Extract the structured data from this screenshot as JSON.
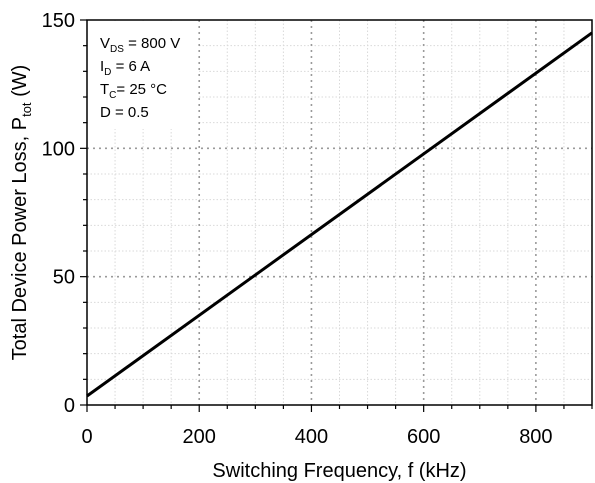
{
  "chart_data": {
    "type": "line",
    "xlabel": "Switching Frequency, f (kHz)",
    "ylabel": {
      "main": "Total Device Power Loss, P",
      "sub": "tot",
      "unit": " (W)"
    },
    "xlim": [
      0,
      900
    ],
    "ylim": [
      0,
      150
    ],
    "x_ticks": [
      0,
      200,
      400,
      600,
      800
    ],
    "y_ticks": [
      0,
      50,
      100,
      150
    ],
    "x_tick_labels": [
      "0",
      "200",
      "400",
      "600",
      "800"
    ],
    "y_tick_labels": [
      "0",
      "50",
      "100",
      "150"
    ],
    "major_grid": true,
    "minor_grid": true,
    "minor_x_step": 50,
    "minor_y_step": 10,
    "series": [
      {
        "x": [
          0,
          900
        ],
        "y": [
          3.5,
          145
        ],
        "color": "#000000"
      }
    ],
    "conditions": [
      {
        "base": "V",
        "sub": "DS",
        "rest": " = 800 V"
      },
      {
        "base": "I",
        "sub": "D",
        "rest": " = 6 A"
      },
      {
        "base": "T",
        "sub": "C",
        "rest": "= 25 °C"
      },
      {
        "base": "D = 0.5",
        "sub": "",
        "rest": ""
      }
    ]
  }
}
